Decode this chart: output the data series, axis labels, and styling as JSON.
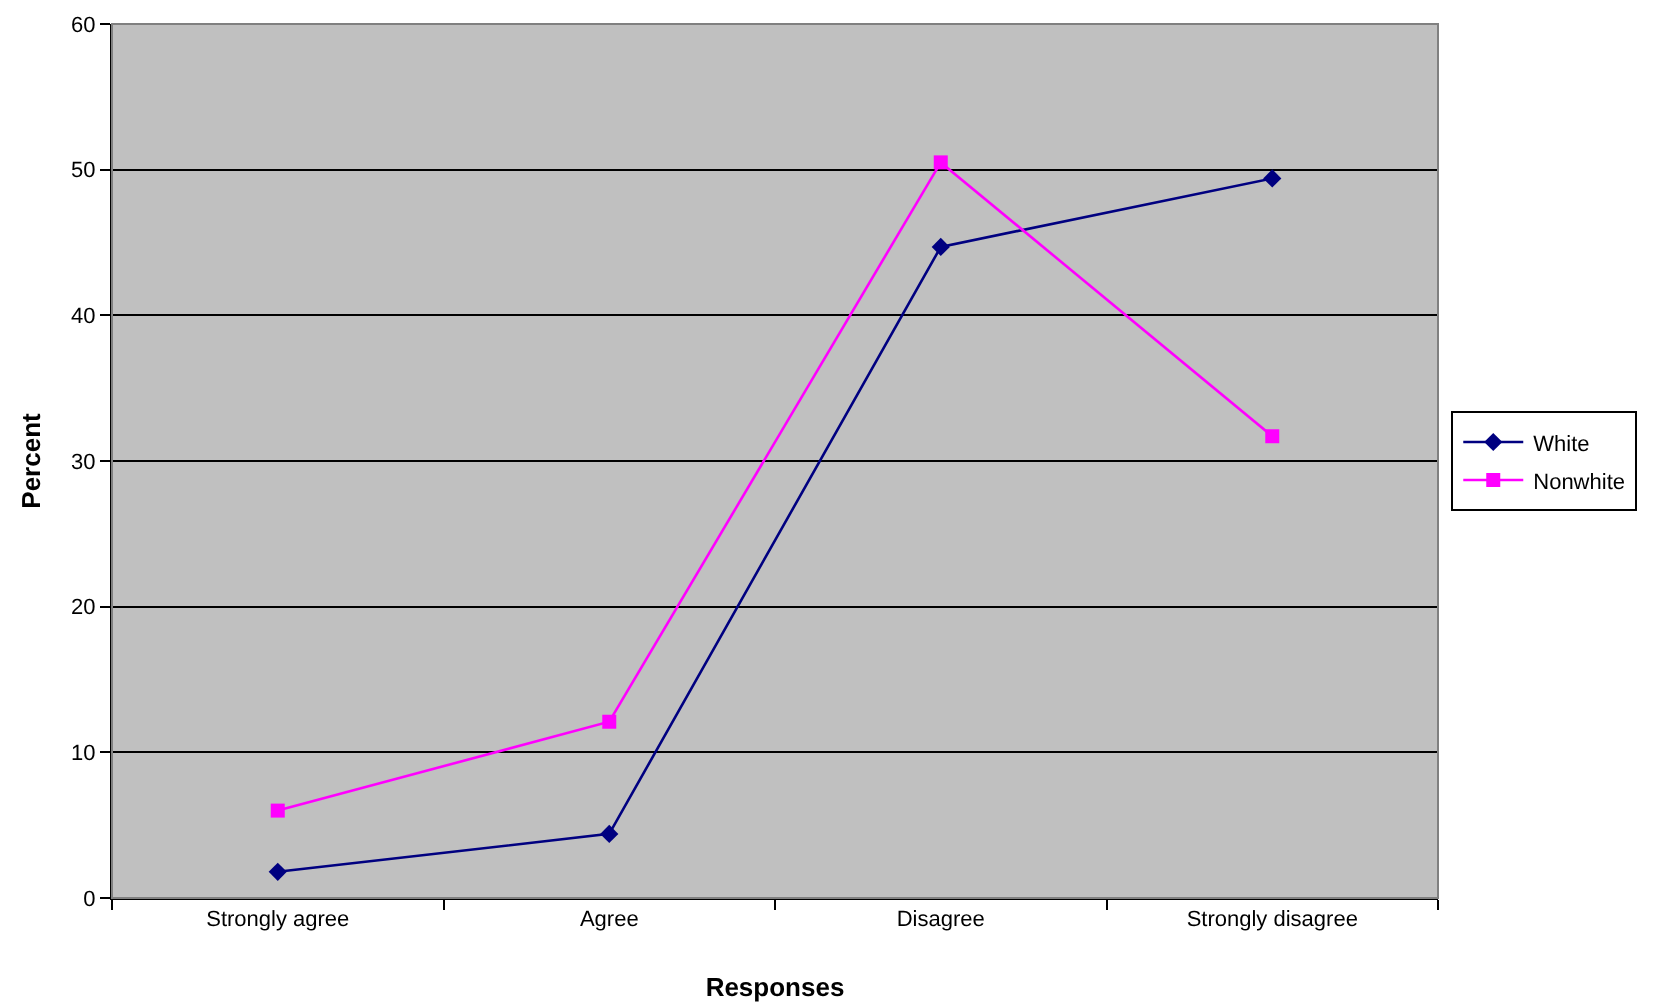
{
  "chart_data": {
    "type": "line",
    "xlabel": "Responses",
    "ylabel": "Percent",
    "categories": [
      "Strongly agree",
      "Agree",
      "Disagree",
      "Strongly disagree"
    ],
    "series": [
      {
        "name": "White",
        "color": "#000080",
        "marker": "diamond",
        "values": [
          1.8,
          4.4,
          44.7,
          49.4
        ]
      },
      {
        "name": "Nonwhite",
        "color": "#ff00ff",
        "marker": "square",
        "values": [
          6.0,
          12.1,
          50.5,
          31.7
        ]
      }
    ],
    "ylim": [
      0,
      60
    ],
    "yticks": [
      0,
      10,
      20,
      30,
      40,
      50,
      60
    ],
    "grid": "y",
    "legend": "right",
    "line_style": "solid"
  }
}
